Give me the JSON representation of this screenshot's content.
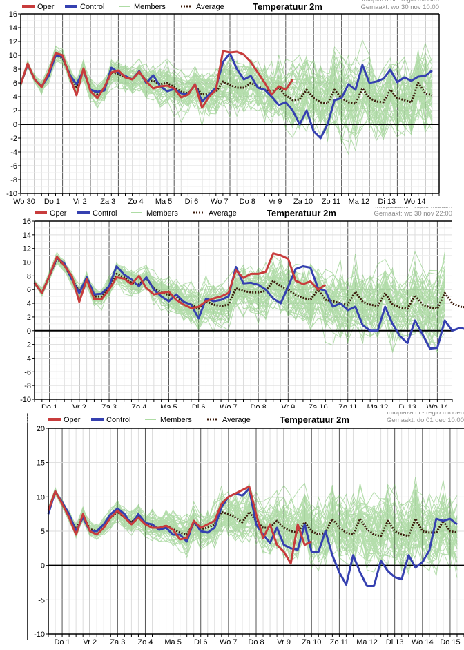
{
  "colors": {
    "oper": "#c83c3c",
    "control": "#3540b0",
    "members": "#5cb84a",
    "average": "#3a1a0a",
    "grid_minor": "#dddddd",
    "grid_major": "#555555",
    "zero_line": "#000000"
  },
  "legend": [
    {
      "key": "oper",
      "label": "Oper",
      "icon": "thick-line-swatch"
    },
    {
      "key": "control",
      "label": "Control",
      "icon": "thick-line-swatch"
    },
    {
      "key": "members",
      "label": "Members",
      "icon": "thin-line-swatch"
    },
    {
      "key": "average",
      "label": "Average",
      "icon": "dotted-line-swatch"
    }
  ],
  "chart_data": [
    {
      "type": "line",
      "title": "Temperatuur 2m",
      "source": "Infoplaza.nl - regio midden",
      "created": "Gemaakt: wo 30 nov 10:00",
      "xlabel": "",
      "ylabel": "",
      "ylim": [
        -10,
        16
      ],
      "yticks": [
        16,
        14,
        12,
        10,
        8,
        6,
        4,
        2,
        0,
        -2,
        -4,
        -6,
        -8,
        -10
      ],
      "grid": true,
      "legend_position": "top-left",
      "x_steps_per_day": 4,
      "day_labels": [
        "Wo 30",
        "Do 1",
        "Vr 2",
        "Za 3",
        "Zo 4",
        "Ma 5",
        "Di 6",
        "Wo 7",
        "Do 8",
        "Vr 9",
        "Za 10",
        "Zo 11",
        "Ma 12",
        "Di 13",
        "Wo 14"
      ],
      "series": [
        {
          "name": "Oper",
          "values": [
            5.8,
            8.8,
            6.5,
            5.4,
            7.5,
            10.3,
            10.0,
            7.0,
            4.2,
            8.1,
            4.8,
            3.8,
            5.4,
            7.5,
            7.8,
            6.8,
            6.5,
            7.6,
            6.2,
            5.2,
            5.5,
            5.6,
            5.2,
            3.9,
            4.3,
            5.8,
            2.4,
            4.0,
            5.0,
            10.6,
            10.4,
            10.5,
            10.1,
            9.0,
            7.5,
            6.0,
            4.3,
            5.5,
            5.0,
            6.5
          ]
        },
        {
          "name": "Control",
          "values": [
            5.8,
            8.7,
            6.5,
            5.5,
            7.0,
            10.0,
            9.8,
            7.2,
            5.8,
            7.8,
            5.0,
            4.7,
            4.9,
            8.2,
            7.5,
            7.0,
            6.5,
            7.7,
            6.0,
            7.1,
            5.5,
            4.8,
            5.1,
            4.5,
            4.3,
            5.8,
            3.3,
            4.3,
            5.3,
            9.0,
            10.3,
            8.0,
            6.5,
            7.0,
            5.3,
            5.0,
            4.0,
            2.8,
            3.2,
            2.0,
            0.0,
            2.0,
            -1.0,
            -2.0,
            0.0,
            3.5,
            3.8,
            5.8,
            5.0,
            8.6,
            6.0,
            6.2,
            6.6,
            7.9,
            6.1,
            6.8,
            6.3,
            6.9,
            7.0,
            7.8
          ]
        },
        {
          "name": "Average",
          "values": [
            5.8,
            8.7,
            6.5,
            5.4,
            7.2,
            10.0,
            9.6,
            7.3,
            5.4,
            7.8,
            5.0,
            4.4,
            5.2,
            7.5,
            7.3,
            6.8,
            6.5,
            7.5,
            6.3,
            6.3,
            5.8,
            6.0,
            5.4,
            4.7,
            4.5,
            5.6,
            4.3,
            4.5,
            4.7,
            6.2,
            5.7,
            5.3,
            5.3,
            6.0,
            5.5,
            5.0,
            4.8,
            5.3,
            4.2,
            3.5,
            3.6,
            5.0,
            3.8,
            3.2,
            3.0,
            5.0,
            3.8,
            3.2,
            3.0,
            5.2,
            3.8,
            3.3,
            3.2,
            5.0,
            3.8,
            3.5,
            3.2,
            6.0,
            4.5,
            4.2
          ]
        }
      ]
    },
    {
      "type": "line",
      "title": "Temperatuur 2m",
      "source": "Infoplaza.nl - regio midden",
      "created": "Gemaakt: wo 30 nov 22:00",
      "xlabel": "",
      "ylabel": "",
      "ylim": [
        -10,
        16
      ],
      "yticks": [
        16,
        14,
        12,
        10,
        8,
        6,
        4,
        2,
        0,
        -2,
        -4,
        -6,
        -8,
        -10
      ],
      "grid": true,
      "legend_position": "top-left",
      "x_steps_per_day": 4,
      "day_labels": [
        "Do 1",
        "Vr 2",
        "Za 3",
        "Zo 4",
        "Ma 5",
        "Di 6",
        "Wo 7",
        "Do 8",
        "Vr 9",
        "Za 10",
        "Zo 11",
        "Ma 12",
        "Di 13",
        "Wo 14"
      ],
      "series": [
        {
          "name": "Oper",
          "values": [
            7.0,
            5.5,
            8.0,
            10.8,
            9.5,
            8.0,
            4.2,
            7.5,
            4.6,
            4.6,
            6.0,
            7.8,
            7.6,
            6.8,
            8.0,
            6.2,
            5.3,
            5.5,
            5.7,
            4.5,
            3.8,
            3.3,
            3.5,
            4.3,
            4.7,
            5.0,
            5.5,
            8.8,
            7.7,
            8.3,
            8.3,
            8.6,
            11.3,
            11.0,
            10.5,
            7.3,
            6.8,
            7.2,
            6.0,
            6.7
          ]
        },
        {
          "name": "Control",
          "values": [
            7.0,
            5.5,
            8.0,
            10.6,
            9.8,
            7.5,
            5.5,
            7.8,
            5.3,
            5.4,
            6.5,
            9.4,
            8.2,
            7.5,
            6.5,
            7.8,
            6.0,
            5.0,
            4.3,
            5.3,
            4.2,
            3.8,
            1.8,
            4.7,
            4.3,
            4.5,
            5.0,
            9.3,
            6.9,
            7.0,
            6.7,
            6.0,
            4.7,
            4.0,
            6.4,
            9.0,
            9.4,
            9.2,
            6.2,
            5.8,
            3.5,
            4.0,
            3.0,
            3.5,
            0.8,
            0.0,
            0.0,
            3.5,
            1.0,
            -0.8,
            -1.8,
            1.5,
            -0.5,
            -2.6,
            -2.5,
            1.5,
            0.0,
            0.4,
            0.2,
            4.0
          ]
        },
        {
          "name": "Average",
          "values": [
            7.0,
            5.5,
            8.0,
            10.5,
            9.5,
            7.6,
            5.7,
            7.5,
            5.0,
            5.0,
            6.2,
            8.3,
            7.8,
            7.0,
            6.8,
            7.6,
            6.2,
            5.6,
            5.2,
            5.0,
            4.2,
            3.8,
            3.2,
            4.3,
            3.8,
            3.6,
            3.8,
            6.2,
            5.8,
            5.6,
            5.6,
            5.8,
            7.3,
            6.5,
            6.0,
            5.2,
            4.8,
            4.5,
            6.0,
            4.5,
            4.3,
            4.0,
            3.8,
            5.7,
            4.2,
            3.8,
            3.6,
            5.5,
            3.8,
            3.4,
            3.2,
            5.2,
            3.8,
            3.4,
            3.2,
            5.5,
            4.0,
            3.5,
            3.4,
            5.3
          ]
        }
      ]
    },
    {
      "type": "line",
      "title": "Temperatuur 2m",
      "source": "Infoplaza.nl - regio midden",
      "created": "Gemaakt: do 01 dec 10:00",
      "xlabel": "",
      "ylabel": "",
      "ylim": [
        -10,
        20
      ],
      "yticks": [
        20,
        15,
        10,
        5,
        0,
        -5,
        -10
      ],
      "grid": true,
      "legend_position": "top-left",
      "x_steps_per_day": 4,
      "day_labels": [
        "Do 1",
        "Vr 2",
        "Za 3",
        "Zo 4",
        "Ma 5",
        "Di 6",
        "Wo 7",
        "Do 8",
        "Vr 9",
        "Za 10",
        "Zo 11",
        "Ma 12",
        "Di 13",
        "Wo 14",
        "Do 15"
      ],
      "series": [
        {
          "name": "Oper",
          "values": [
            8.0,
            10.8,
            9.0,
            7.0,
            4.5,
            7.5,
            5.0,
            4.5,
            5.5,
            7.0,
            8.0,
            7.0,
            6.0,
            7.0,
            6.0,
            5.5,
            5.5,
            5.8,
            5.2,
            3.8,
            4.0,
            6.5,
            5.5,
            6.0,
            6.5,
            9.0,
            10.0,
            10.5,
            11.0,
            11.5,
            7.5,
            4.0,
            6.0,
            3.0,
            2.0,
            0.3,
            6.0,
            3.0,
            3.5
          ]
        },
        {
          "name": "Control",
          "values": [
            7.5,
            10.8,
            9.2,
            7.5,
            5.0,
            7.0,
            5.0,
            5.0,
            6.0,
            7.5,
            8.3,
            7.5,
            6.0,
            7.5,
            6.2,
            6.0,
            5.2,
            5.5,
            4.5,
            4.5,
            3.5,
            6.5,
            5.0,
            4.8,
            5.5,
            8.5,
            10.0,
            10.5,
            10.2,
            11.2,
            6.0,
            4.5,
            3.3,
            5.5,
            3.0,
            2.5,
            2.3,
            6.0,
            2.0,
            2.0,
            5.0,
            1.5,
            -1.0,
            -2.8,
            1.5,
            -1.0,
            -3.0,
            -3.0,
            0.7,
            -0.8,
            -1.7,
            -2.0,
            1.5,
            -0.3,
            0.5,
            2.2,
            6.8,
            6.5,
            6.8,
            6.0
          ]
        },
        {
          "name": "Average",
          "values": [
            8.0,
            10.8,
            9.0,
            7.3,
            5.2,
            7.3,
            5.3,
            5.0,
            5.8,
            7.0,
            7.8,
            7.0,
            6.3,
            7.3,
            6.2,
            5.8,
            5.5,
            5.8,
            5.3,
            4.8,
            4.5,
            6.2,
            5.3,
            5.5,
            6.0,
            7.8,
            7.5,
            7.0,
            6.3,
            7.8,
            6.5,
            5.5,
            5.5,
            6.5,
            5.5,
            5.0,
            4.8,
            6.3,
            5.0,
            4.5,
            4.8,
            6.8,
            5.5,
            4.8,
            4.5,
            6.8,
            5.3,
            4.5,
            4.3,
            6.5,
            5.0,
            4.5,
            4.3,
            6.8,
            5.0,
            4.8,
            4.8,
            6.5,
            5.0,
            4.8
          ]
        }
      ]
    }
  ]
}
